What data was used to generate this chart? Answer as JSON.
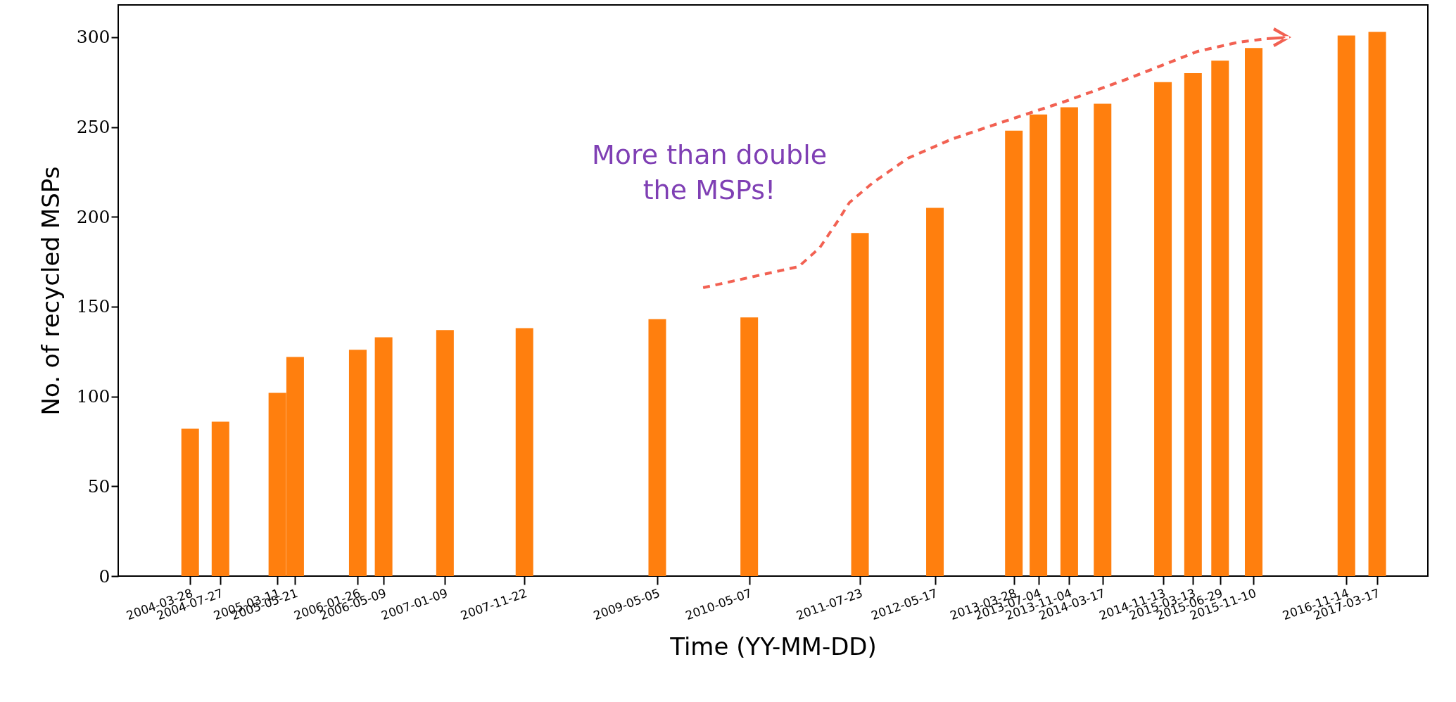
{
  "chart_data": {
    "type": "bar",
    "xlabel": "Time (YY-MM-DD)",
    "ylabel": "No. of recycled MSPs",
    "x": [
      "2004-03-28",
      "2004-07-27",
      "2005-03-11",
      "2005-05-21",
      "2006-01-26",
      "2006-05-09",
      "2007-01-09",
      "2007-11-22",
      "2009-05-05",
      "2010-05-07",
      "2011-07-23",
      "2012-05-17",
      "2013-03-28",
      "2013-07-04",
      "2013-11-04",
      "2014-03-17",
      "2014-11-13",
      "2015-03-13",
      "2015-06-29",
      "2015-11-10",
      "2016-11-14",
      "2017-03-17"
    ],
    "values": [
      82,
      86,
      102,
      122,
      126,
      133,
      137,
      138,
      143,
      144,
      191,
      205,
      248,
      257,
      261,
      263,
      275,
      280,
      287,
      294,
      301,
      303
    ],
    "color": "#ff7f0e",
    "xlim": [
      "2003-06-29",
      "2017-09-21"
    ],
    "xticks": [
      "2004-03-28",
      "2004-07-27",
      "2005-03-11",
      "2005-05-21",
      "2006-01-26",
      "2006-05-09",
      "2007-01-09",
      "2007-11-22",
      "2009-05-05",
      "2010-05-07",
      "2011-07-23",
      "2012-05-17",
      "2013-03-28",
      "2013-07-04",
      "2013-11-04",
      "2014-03-17",
      "2014-11-13",
      "2015-03-13",
      "2015-06-29",
      "2015-11-10",
      "2016-11-14",
      "2017-03-17"
    ],
    "ylim": [
      0,
      318
    ],
    "yticks": [
      0,
      50,
      100,
      150,
      200,
      250,
      300
    ],
    "grid": false,
    "annotations": [
      "More than double\nthe MSPs!"
    ]
  }
}
